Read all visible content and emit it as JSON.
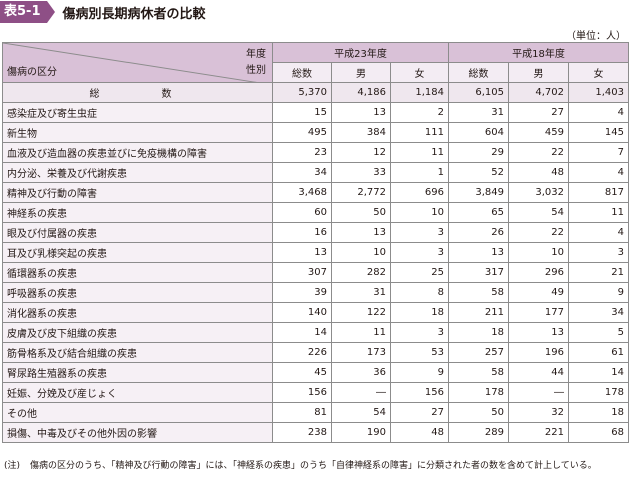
{
  "title": {
    "badge": "表5-1",
    "text": "傷病別長期病休者の比較"
  },
  "unit": "（単位：人）",
  "header": {
    "year_label": "年度",
    "sex_label": "性別",
    "category_label": "傷病の区分",
    "years": [
      "平成23年度",
      "平成18年度"
    ],
    "subcols": [
      "総数",
      "男",
      "女",
      "総数",
      "男",
      "女"
    ]
  },
  "rows": [
    {
      "label": "総　　数",
      "values": [
        "5,370",
        "4,186",
        "1,184",
        "6,105",
        "4,702",
        "1,403"
      ]
    },
    {
      "label": "感染症及び寄生虫症",
      "values": [
        "15",
        "13",
        "2",
        "31",
        "27",
        "4"
      ]
    },
    {
      "label": "新生物",
      "values": [
        "495",
        "384",
        "111",
        "604",
        "459",
        "145"
      ]
    },
    {
      "label": "血液及び造血器の疾患並びに免疫機構の障害",
      "values": [
        "23",
        "12",
        "11",
        "29",
        "22",
        "7"
      ]
    },
    {
      "label": "内分泌、栄養及び代謝疾患",
      "values": [
        "34",
        "33",
        "1",
        "52",
        "48",
        "4"
      ]
    },
    {
      "label": "精神及び行動の障害",
      "values": [
        "3,468",
        "2,772",
        "696",
        "3,849",
        "3,032",
        "817"
      ]
    },
    {
      "label": "神経系の疾患",
      "values": [
        "60",
        "50",
        "10",
        "65",
        "54",
        "11"
      ]
    },
    {
      "label": "眼及び付属器の疾患",
      "values": [
        "16",
        "13",
        "3",
        "26",
        "22",
        "4"
      ]
    },
    {
      "label": "耳及び乳様突起の疾患",
      "values": [
        "13",
        "10",
        "3",
        "13",
        "10",
        "3"
      ]
    },
    {
      "label": "循環器系の疾患",
      "values": [
        "307",
        "282",
        "25",
        "317",
        "296",
        "21"
      ]
    },
    {
      "label": "呼吸器系の疾患",
      "values": [
        "39",
        "31",
        "8",
        "58",
        "49",
        "9"
      ]
    },
    {
      "label": "消化器系の疾患",
      "values": [
        "140",
        "122",
        "18",
        "211",
        "177",
        "34"
      ]
    },
    {
      "label": "皮膚及び皮下組織の疾患",
      "values": [
        "14",
        "11",
        "3",
        "18",
        "13",
        "5"
      ]
    },
    {
      "label": "筋骨格系及び結合組織の疾患",
      "values": [
        "226",
        "173",
        "53",
        "257",
        "196",
        "61"
      ]
    },
    {
      "label": "腎尿路生殖器系の疾患",
      "values": [
        "45",
        "36",
        "9",
        "58",
        "44",
        "14"
      ]
    },
    {
      "label": "妊娠、分娩及び産じょく",
      "values": [
        "156",
        "―",
        "156",
        "178",
        "―",
        "178"
      ]
    },
    {
      "label": "その他",
      "values": [
        "81",
        "54",
        "27",
        "50",
        "32",
        "18"
      ]
    },
    {
      "label": "損傷、中毒及びその他外因の影響",
      "values": [
        "238",
        "190",
        "48",
        "289",
        "221",
        "68"
      ]
    }
  ],
  "note": {
    "label": "(注)",
    "text": "傷病の区分のうち、「精神及び行動の障害」には、「神経系の疾患」のうち「自律神経系の障害」に分類された者の数を含めて計上している。"
  }
}
